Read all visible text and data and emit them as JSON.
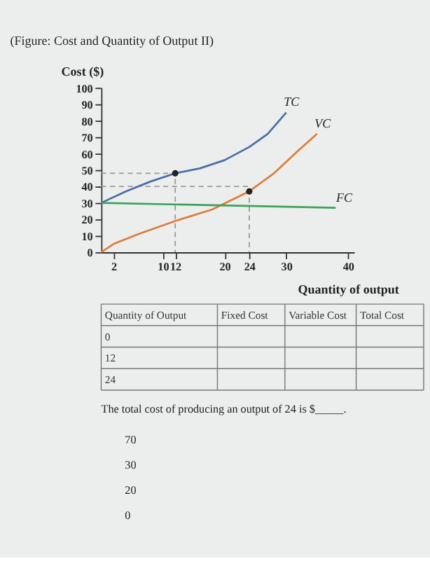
{
  "chart_data": {
    "type": "line",
    "title": "(Figure: Cost and Quantity of Output II)",
    "xlabel": "Quantity of output",
    "ylabel": "Cost ($)",
    "xlim": [
      0,
      41
    ],
    "ylim": [
      0,
      100
    ],
    "xticks": [
      2,
      10,
      12,
      20,
      24,
      30,
      40
    ],
    "yticks": [
      0,
      10,
      20,
      30,
      40,
      50,
      60,
      70,
      80,
      90,
      100
    ],
    "grid": false,
    "series": [
      {
        "color": "#999999",
        "line_style": "dashed",
        "x": [
          0,
          12,
          12
        ],
        "values": [
          48,
          48,
          0
        ]
      },
      {
        "color": "#999999",
        "line_style": "dashed",
        "x": [
          0,
          24,
          24
        ],
        "values": [
          40,
          40,
          0
        ]
      },
      {
        "color": "#4a6fa5",
        "x": [
          0,
          4,
          8,
          12,
          16,
          20,
          24,
          27,
          30
        ],
        "values": [
          30,
          37,
          43,
          48,
          51,
          56,
          64,
          72,
          85
        ]
      },
      {
        "color": "#e07b39",
        "x": [
          0,
          2,
          6,
          12,
          18,
          24,
          28,
          32,
          35
        ],
        "values": [
          0,
          5,
          11,
          19,
          26,
          37,
          48,
          62,
          72
        ]
      },
      {
        "color": "#3aa35a",
        "x": [
          0,
          38
        ],
        "values": [
          30,
          27
        ]
      },
      {
        "type": "scatter",
        "color": "#222222",
        "marker": "circle",
        "x": [
          12,
          24
        ],
        "values": [
          48,
          37
        ]
      }
    ],
    "annotations": [
      {
        "text": "TC",
        "x": 30,
        "y": 85
      },
      {
        "text": "VC",
        "x": 35,
        "y": 72
      },
      {
        "text": "FC",
        "x": 38.5,
        "y": 27
      },
      "Quantity of Output",
      "Fixed Cost",
      "Variable Cost",
      "Total Cost",
      "0",
      "12",
      "24",
      "The total cost of producing an output of 24 is $_____.",
      "70",
      "30",
      "20",
      "0"
    ]
  }
}
